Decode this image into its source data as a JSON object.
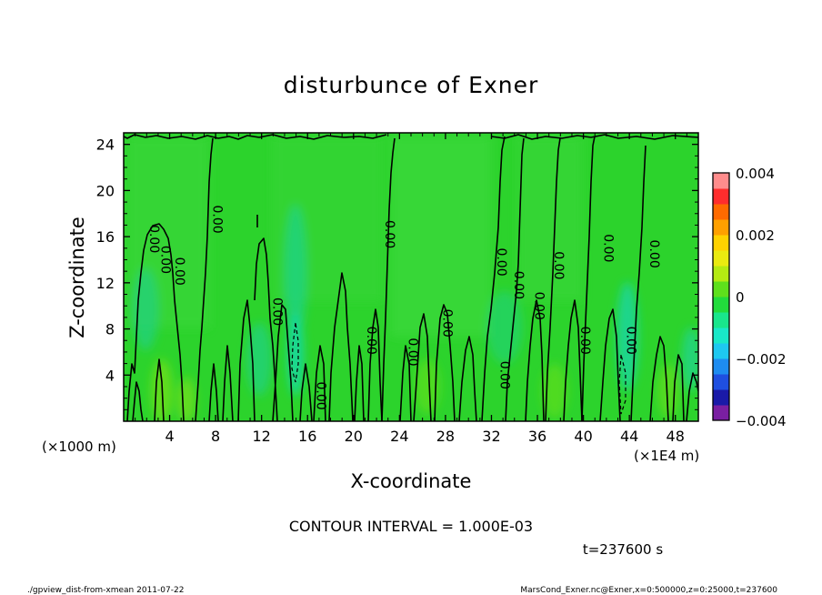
{
  "chart_data": {
    "type": "heatmap",
    "title": "disturbunce of Exner",
    "xlabel": "X-coordinate",
    "ylabel": "Z-coordinate",
    "x_unit_left": "(×1000 m)",
    "x_unit_right": "(×1E4 m)",
    "xlim": [
      0,
      50
    ],
    "ylim": [
      0,
      25
    ],
    "xticks": [
      "4",
      "8",
      "12",
      "16",
      "20",
      "24",
      "28",
      "32",
      "36",
      "40",
      "44",
      "48"
    ],
    "xtick_values": [
      4,
      8,
      12,
      16,
      20,
      24,
      28,
      32,
      36,
      40,
      44,
      48
    ],
    "yticks": [
      "4",
      "8",
      "12",
      "16",
      "20",
      "24"
    ],
    "ytick_values": [
      4,
      8,
      12,
      16,
      20,
      24
    ],
    "contour_interval": "CONTOUR INTERVAL = 1.000E-03",
    "time_label": "t=237600 s",
    "contour_label_text": "0.00",
    "contour_label_positions": [
      [
        2.3,
        15.8
      ],
      [
        3.3,
        14.0
      ],
      [
        4.5,
        13.0
      ],
      [
        7.8,
        17.5
      ],
      [
        13.0,
        9.5
      ],
      [
        16.8,
        2.2
      ],
      [
        21.2,
        7.0
      ],
      [
        22.8,
        16.2
      ],
      [
        24.8,
        6.0
      ],
      [
        27.8,
        8.5
      ],
      [
        32.8,
        4.0
      ],
      [
        32.5,
        13.8
      ],
      [
        34.0,
        11.8
      ],
      [
        35.8,
        10.0
      ],
      [
        37.5,
        13.5
      ],
      [
        39.8,
        7.0
      ],
      [
        41.8,
        15.0
      ],
      [
        43.8,
        7.0
      ],
      [
        45.8,
        14.5
      ]
    ],
    "colorbar": {
      "ticks": [
        "0.004",
        "0.002",
        "0",
        "−0.002",
        "−0.004"
      ],
      "tick_values": [
        0.004,
        0.002,
        0,
        -0.002,
        -0.004
      ],
      "range": [
        -0.004,
        0.004
      ],
      "colors": [
        "#7a1fa2",
        "#1a1aa8",
        "#1f4fe0",
        "#1e8cf0",
        "#1ec8f0",
        "#19e8c8",
        "#19e68c",
        "#22dc3c",
        "#5ee01c",
        "#b4ea12",
        "#eaea10",
        "#ffd200",
        "#ffa000",
        "#ff6a00",
        "#ff2d2d",
        "#ff8c8c"
      ]
    },
    "field_base_color": "#2cd32c"
  },
  "footer": {
    "left": "./gpview_dist-from-xmean  2011-07-22",
    "right": "MarsCond_Exner.nc@Exner,x=0:500000,z=0:25000,t=237600"
  }
}
